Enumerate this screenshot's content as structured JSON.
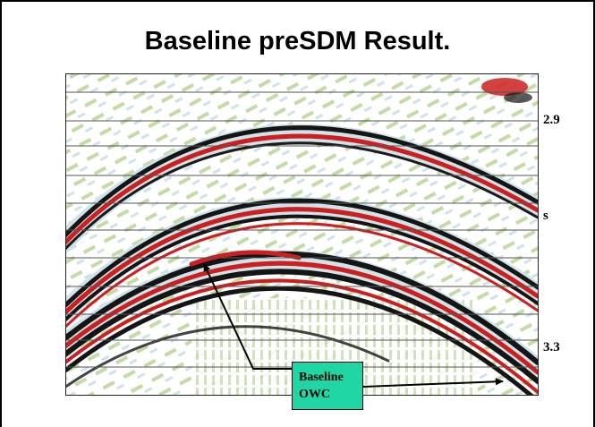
{
  "slide": {
    "title": "Baseline preSDM Result.",
    "time_labels": [
      "2.9",
      "s",
      "3.3"
    ],
    "callout": {
      "line1": "Baseline",
      "line2": "OWC"
    }
  },
  "colors": {
    "reflector_red": "#cc2020",
    "trough_black": "#151515",
    "background_green": "#c4dba6",
    "halo_blue": "#cfe3e8",
    "callout_fill": "#1fd6a4"
  }
}
